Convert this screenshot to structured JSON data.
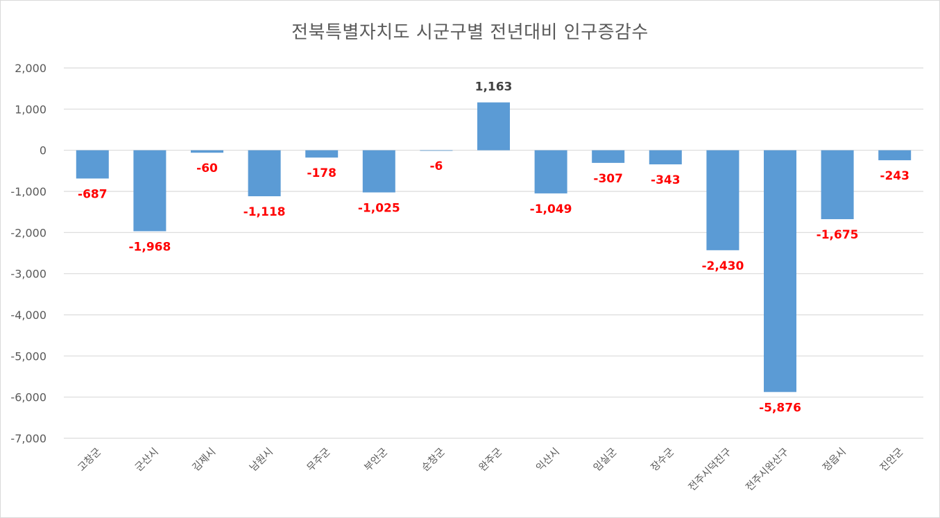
{
  "chart_data": {
    "type": "bar",
    "title": "전북특별자치도 시군구별 전년대비 인구증감수",
    "xlabel": "",
    "ylabel": "",
    "categories": [
      "고창군",
      "군산시",
      "김제시",
      "남원시",
      "무주군",
      "부안군",
      "순창군",
      "완주군",
      "익산시",
      "임실군",
      "장수군",
      "전주시덕진구",
      "전주시완산구",
      "정읍시",
      "진안군"
    ],
    "values": [
      -687,
      -1968,
      -60,
      -1118,
      -178,
      -1025,
      -6,
      1163,
      -1049,
      -307,
      -343,
      -2430,
      -5876,
      -1675,
      -243
    ],
    "data_labels": [
      "-687",
      "-1,968",
      "-60",
      "-1,118",
      "-178",
      "-1,025",
      "-6",
      "1,163",
      "-1,049",
      "-307",
      "-343",
      "-2,430",
      "-5,876",
      "-1,675",
      "-243"
    ],
    "yticks": [
      2000,
      1000,
      0,
      -1000,
      -2000,
      -3000,
      -4000,
      -5000,
      -6000,
      -7000
    ],
    "ytick_labels": [
      "2,000",
      "1,000",
      "0",
      "-1,000",
      "-2,000",
      "-3,000",
      "-4,000",
      "-5,000",
      "-6,000",
      "-7,000"
    ],
    "ylim": [
      -7000,
      2000
    ],
    "grid": true,
    "legend": "none",
    "colors": {
      "bar": "#5b9bd5",
      "negative_label": "#ff0000",
      "positive_label": "#404040"
    }
  }
}
